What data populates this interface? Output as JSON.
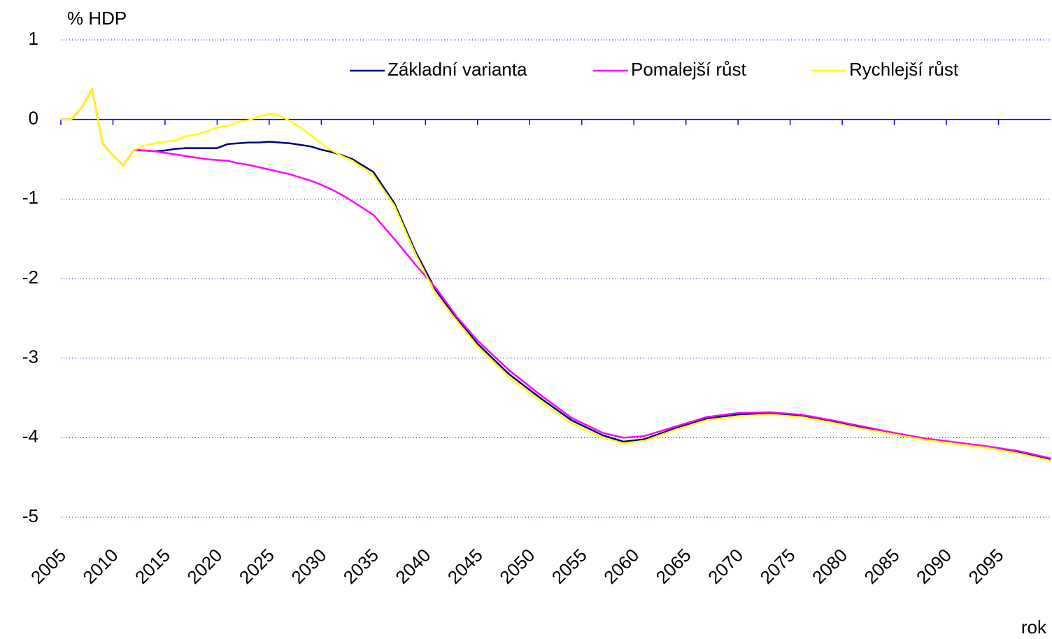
{
  "chart_data": {
    "type": "line",
    "y_label": "% HDP",
    "x_label": "rok",
    "x": [
      2005,
      2006,
      2007,
      2008,
      2009,
      2010,
      2011,
      2012,
      2013,
      2014,
      2015,
      2016,
      2017,
      2018,
      2019,
      2020,
      2021,
      2022,
      2023,
      2024,
      2025,
      2026,
      2027,
      2028,
      2029,
      2030,
      2031,
      2032,
      2033,
      2035,
      2037,
      2039,
      2041,
      2043,
      2045,
      2048,
      2051,
      2054,
      2057,
      2059,
      2061,
      2064,
      2067,
      2070,
      2073,
      2076,
      2079,
      2082,
      2085,
      2088,
      2091,
      2094,
      2097,
      2100
    ],
    "series": [
      {
        "name": "Základní varianta",
        "color": "#000080",
        "values": [
          0,
          0,
          0.15,
          0.38,
          -0.3,
          -0.45,
          -0.58,
          -0.38,
          -0.39,
          -0.4,
          -0.39,
          -0.37,
          -0.36,
          -0.36,
          -0.36,
          -0.36,
          -0.31,
          -0.3,
          -0.29,
          -0.29,
          -0.28,
          -0.29,
          -0.3,
          -0.32,
          -0.34,
          -0.38,
          -0.41,
          -0.45,
          -0.5,
          -0.66,
          -1.05,
          -1.65,
          -2.15,
          -2.5,
          -2.82,
          -3.2,
          -3.5,
          -3.78,
          -3.97,
          -4.05,
          -4.02,
          -3.88,
          -3.76,
          -3.71,
          -3.7,
          -3.73,
          -3.8,
          -3.88,
          -3.95,
          -4.02,
          -4.07,
          -4.12,
          -4.18,
          -4.27
        ]
      },
      {
        "name": "Pomalejší růst",
        "color": "#ff00ff",
        "values": [
          0,
          0,
          0.15,
          0.38,
          -0.3,
          -0.45,
          -0.58,
          -0.38,
          -0.39,
          -0.4,
          -0.42,
          -0.44,
          -0.46,
          -0.48,
          -0.5,
          -0.51,
          -0.52,
          -0.55,
          -0.57,
          -0.6,
          -0.63,
          -0.66,
          -0.69,
          -0.73,
          -0.77,
          -0.82,
          -0.88,
          -0.95,
          -1.03,
          -1.2,
          -1.5,
          -1.82,
          -2.12,
          -2.48,
          -2.78,
          -3.15,
          -3.46,
          -3.75,
          -3.94,
          -4.0,
          -3.98,
          -3.86,
          -3.74,
          -3.69,
          -3.68,
          -3.71,
          -3.78,
          -3.86,
          -3.94,
          -4.01,
          -4.06,
          -4.11,
          -4.17,
          -4.26
        ]
      },
      {
        "name": "Rychlejší růst",
        "color": "#ffff00",
        "values": [
          0,
          0,
          0.15,
          0.38,
          -0.3,
          -0.45,
          -0.58,
          -0.38,
          -0.33,
          -0.3,
          -0.28,
          -0.26,
          -0.21,
          -0.19,
          -0.15,
          -0.1,
          -0.08,
          -0.03,
          -0.01,
          0.04,
          0.07,
          0.05,
          -0.02,
          -0.1,
          -0.2,
          -0.3,
          -0.39,
          -0.46,
          -0.52,
          -0.7,
          -1.08,
          -1.68,
          -2.2,
          -2.53,
          -2.85,
          -3.24,
          -3.54,
          -3.82,
          -4.0,
          -4.07,
          -4.04,
          -3.9,
          -3.78,
          -3.73,
          -3.71,
          -3.74,
          -3.81,
          -3.89,
          -3.96,
          -4.03,
          -4.08,
          -4.13,
          -4.2,
          -4.29
        ]
      }
    ],
    "xlim": [
      2005,
      2100
    ],
    "xticks": [
      2005,
      2010,
      2015,
      2020,
      2025,
      2030,
      2035,
      2040,
      2045,
      2050,
      2055,
      2060,
      2065,
      2070,
      2075,
      2080,
      2085,
      2090,
      2095
    ],
    "ylim": [
      -5,
      1
    ],
    "yticks": [
      1,
      0,
      -1,
      -2,
      -3,
      -4,
      -5
    ],
    "grid": true
  }
}
